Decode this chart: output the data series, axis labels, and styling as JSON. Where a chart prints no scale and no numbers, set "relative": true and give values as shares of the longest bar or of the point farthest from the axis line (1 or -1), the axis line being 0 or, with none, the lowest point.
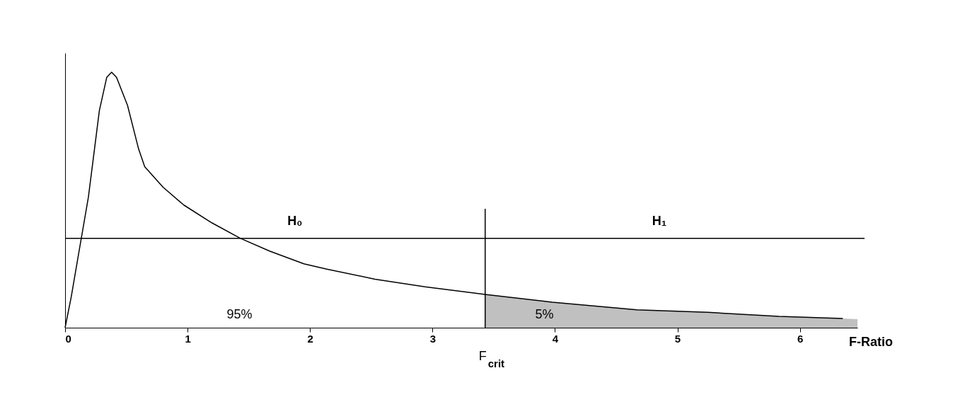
{
  "chart_data": {
    "type": "line",
    "relative": true,
    "xlabel": "F-Ratio",
    "xlim": [
      0,
      6.47
    ],
    "xticks": [
      0,
      1,
      2,
      3,
      4,
      5,
      6
    ],
    "grid": false,
    "tick_labels": "x",
    "series": [
      {
        "type": "area",
        "color": "#c0c0c0",
        "x": [
          3.43,
          3.98,
          4.67,
          5.25,
          5.83,
          6.35,
          6.47
        ],
        "values": [
          0.13,
          0.1,
          0.07,
          0.06,
          0.044,
          0.036,
          0.033
        ]
      },
      {
        "color": "#000000",
        "line_style": "solid",
        "x": [
          0,
          0.05,
          0.1,
          0.19,
          0.28,
          0.34,
          0.38,
          0.42,
          0.51,
          0.6,
          0.65,
          0.8,
          0.97,
          1.2,
          1.43,
          1.67,
          1.95,
          2.13,
          2.53,
          2.94,
          3.43,
          3.98,
          4.67,
          5.25,
          5.83,
          6.35
        ],
        "values": [
          0,
          0.12,
          0.26,
          0.51,
          0.85,
          0.98,
          1.0,
          0.98,
          0.87,
          0.7,
          0.63,
          0.55,
          0.48,
          0.41,
          0.35,
          0.3,
          0.25,
          0.23,
          0.19,
          0.16,
          0.13,
          0.1,
          0.07,
          0.06,
          0.044,
          0.036
        ]
      }
    ],
    "ref_lines": [
      {
        "axis": "y",
        "value": 0.35,
        "color": "#000000"
      },
      {
        "axis": "x",
        "value": 3.43,
        "label": "F$_{crit}$",
        "color": "#000000"
      }
    ],
    "annotations": [
      "H₀",
      "H₁",
      "95%",
      "5%"
    ]
  }
}
